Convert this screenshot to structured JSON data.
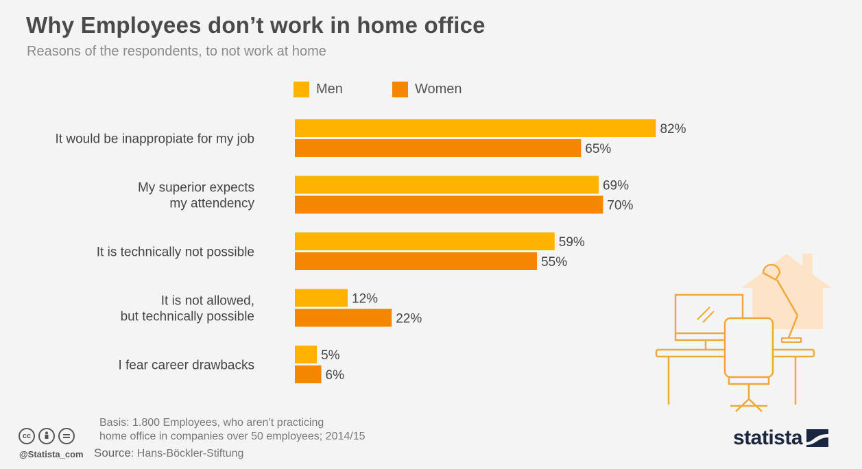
{
  "header": {
    "title": "Why Employees don’t work in home office",
    "subtitle": "Reasons of the respondents, to not work at home"
  },
  "legend": [
    {
      "label": "Men",
      "color": "#FFB300"
    },
    {
      "label": "Women",
      "color": "#F58700"
    }
  ],
  "chart_data": {
    "type": "bar",
    "orientation": "horizontal",
    "categories": [
      [
        "It would be inappropiate for my job"
      ],
      [
        "My superior expects",
        "my attendency"
      ],
      [
        "It is technically not possible"
      ],
      [
        "It is not allowed,",
        "but technically possible"
      ],
      [
        "I fear career drawbacks"
      ]
    ],
    "series": [
      {
        "name": "Men",
        "color": "#FFB300",
        "values": [
          82,
          69,
          59,
          12,
          5
        ]
      },
      {
        "name": "Women",
        "color": "#F58700",
        "values": [
          65,
          70,
          55,
          22,
          6
        ]
      }
    ],
    "value_suffix": "%",
    "xlim": [
      0,
      82
    ],
    "grid": false,
    "legend_position": "top"
  },
  "footer": {
    "note_lines": [
      "Basis: 1.800 Employees, who aren’t practicing",
      "home office in companies over 50 employees; 2014/15"
    ],
    "source_label": "Source",
    "source_value": ": Hans-Böckler-Stiftung",
    "handle": "@Statista_com",
    "brand": "statista",
    "cc_icons": [
      "creative-commons-icon",
      "attribution-icon",
      "no-derivatives-icon"
    ]
  },
  "illustration": {
    "icon": "home-office-desk-icon"
  }
}
